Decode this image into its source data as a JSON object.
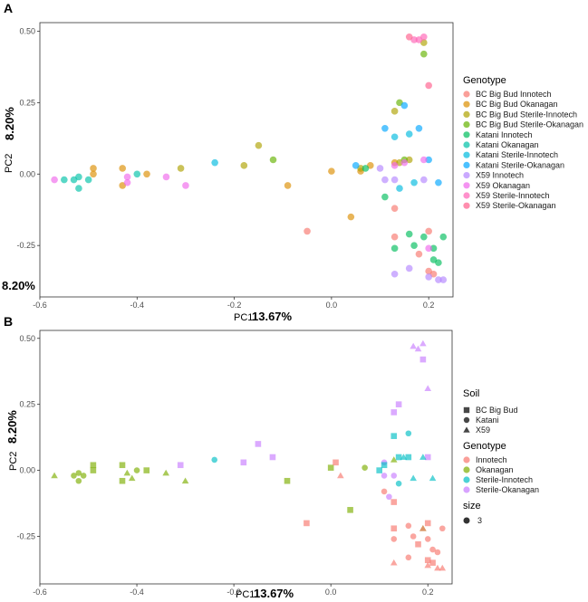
{
  "colors": {
    "BC Big Bud Innotech": "#F8766D",
    "BC Big Bud Okanagan": "#DB8E00",
    "BC Big Bud Sterile-Innotech": "#AEA200",
    "BC Big Bud Sterile-Okanagan": "#64B200",
    "Katani Innotech": "#00BD5C",
    "Katani Okanagan": "#00C1A7",
    "Katani Sterile-Innotech": "#00BADE",
    "Katani Sterile-Okanagan": "#00A6FF",
    "X59 Innotech": "#B385FF",
    "X59 Okanagan": "#EF67EB",
    "X59 Sterile-Innotech": "#FF63B6",
    "X59 Sterile-Okanagan": "#FF5E8C",
    "Innotech": "#F8766D",
    "Okanagan": "#7CAE00",
    "Sterile-Innotech": "#00BFC4",
    "Sterile-Okanagan": "#C77CFF"
  },
  "chart_data": [
    {
      "panel": "A",
      "type": "scatter",
      "xlabel": "PC1",
      "xlabel_pct": "13.67%",
      "ylabel": "PC2",
      "ylabel_pct": "8.20%",
      "extra_label": "8.20%",
      "xlim": [
        -0.6,
        0.25
      ],
      "ylim": [
        -0.43,
        0.53
      ],
      "x_ticks": [
        -0.6,
        -0.4,
        -0.2,
        0.0,
        0.2
      ],
      "x_tick_labels": [
        "-0.6",
        "-0.4",
        "-0.2",
        "0.0",
        "0.2"
      ],
      "y_ticks": [
        0.5,
        0.25,
        0.0,
        -0.25
      ],
      "y_tick_labels": [
        "0.50",
        "0.25",
        "0.00",
        "-0.25"
      ],
      "legend_title": "Genotype",
      "legend": [
        "BC Big Bud Innotech",
        "BC Big Bud Okanagan",
        "BC Big Bud Sterile-Innotech",
        "BC Big Bud Sterile-Okanagan",
        "Katani Innotech",
        "Katani Okanagan",
        "Katani Sterile-Innotech",
        "Katani Sterile-Okanagan",
        "X59 Innotech",
        "X59 Okanagan",
        "X59 Sterile-Innotech",
        "X59 Sterile-Okanagan"
      ],
      "series": [
        {
          "name": "BC Big Bud Innotech",
          "points": [
            [
              -0.05,
              -0.2
            ],
            [
              0.13,
              -0.12
            ],
            [
              0.13,
              -0.22
            ],
            [
              0.2,
              -0.2
            ],
            [
              0.2,
              -0.34
            ],
            [
              0.21,
              -0.35
            ],
            [
              0.18,
              -0.28
            ]
          ]
        },
        {
          "name": "BC Big Bud Okanagan",
          "points": [
            [
              -0.49,
              0.02
            ],
            [
              -0.49,
              0.0
            ],
            [
              -0.43,
              0.02
            ],
            [
              -0.43,
              -0.04
            ],
            [
              -0.38,
              0.0
            ],
            [
              -0.09,
              -0.04
            ],
            [
              0.0,
              0.01
            ],
            [
              0.04,
              -0.15
            ],
            [
              0.08,
              0.03
            ],
            [
              0.13,
              0.04
            ],
            [
              0.06,
              0.01
            ]
          ]
        },
        {
          "name": "BC Big Bud Sterile-Innotech",
          "points": [
            [
              -0.15,
              0.1
            ],
            [
              -0.31,
              0.02
            ],
            [
              -0.18,
              0.03
            ],
            [
              0.13,
              0.22
            ],
            [
              0.16,
              0.05
            ],
            [
              0.19,
              0.46
            ],
            [
              0.14,
              0.04
            ],
            [
              0.06,
              0.02
            ]
          ]
        },
        {
          "name": "BC Big Bud Sterile-Okanagan",
          "points": [
            [
              -0.12,
              0.05
            ],
            [
              0.14,
              0.25
            ],
            [
              0.19,
              0.42
            ],
            [
              0.15,
              0.05
            ]
          ]
        },
        {
          "name": "Katani Innotech",
          "points": [
            [
              0.13,
              -0.26
            ],
            [
              0.16,
              -0.21
            ],
            [
              0.17,
              -0.25
            ],
            [
              0.19,
              -0.22
            ],
            [
              0.21,
              -0.26
            ],
            [
              0.21,
              -0.3
            ],
            [
              0.22,
              -0.31
            ],
            [
              0.11,
              -0.08
            ],
            [
              0.23,
              -0.22
            ],
            [
              0.07,
              0.02
            ]
          ]
        },
        {
          "name": "Katani Okanagan",
          "points": [
            [
              -0.53,
              -0.02
            ],
            [
              -0.52,
              -0.01
            ],
            [
              -0.5,
              -0.02
            ],
            [
              -0.55,
              -0.02
            ],
            [
              -0.52,
              -0.05
            ],
            [
              -0.4,
              0.0
            ]
          ]
        },
        {
          "name": "Katani Sterile-Innotech",
          "points": [
            [
              -0.24,
              0.04
            ],
            [
              0.14,
              -0.05
            ],
            [
              0.16,
              0.14
            ],
            [
              0.13,
              0.13
            ],
            [
              0.17,
              -0.03
            ]
          ]
        },
        {
          "name": "Katani Sterile-Okanagan",
          "points": [
            [
              0.05,
              0.03
            ],
            [
              0.11,
              0.16
            ],
            [
              0.15,
              0.24
            ],
            [
              0.2,
              0.05
            ],
            [
              0.18,
              0.16
            ],
            [
              0.22,
              -0.03
            ]
          ]
        },
        {
          "name": "X59 Innotech",
          "points": [
            [
              0.11,
              -0.02
            ],
            [
              0.13,
              -0.02
            ],
            [
              0.19,
              -0.02
            ],
            [
              0.16,
              -0.33
            ],
            [
              0.2,
              -0.36
            ],
            [
              0.22,
              -0.37
            ],
            [
              0.23,
              -0.37
            ],
            [
              0.13,
              -0.35
            ],
            [
              0.1,
              0.02
            ]
          ]
        },
        {
          "name": "X59 Okanagan",
          "points": [
            [
              -0.57,
              -0.02
            ],
            [
              -0.42,
              -0.01
            ],
            [
              -0.42,
              -0.03
            ],
            [
              -0.34,
              -0.01
            ],
            [
              -0.3,
              -0.04
            ],
            [
              0.15,
              0.04
            ],
            [
              0.19,
              0.05
            ],
            [
              0.2,
              -0.26
            ],
            [
              0.13,
              0.03
            ]
          ]
        },
        {
          "name": "X59 Sterile-Innotech",
          "points": [
            [
              0.17,
              0.47
            ],
            [
              0.18,
              0.47
            ],
            [
              0.19,
              0.48
            ]
          ]
        },
        {
          "name": "X59 Sterile-Okanagan",
          "points": [
            [
              0.2,
              0.31
            ],
            [
              0.16,
              0.48
            ]
          ]
        }
      ]
    },
    {
      "panel": "B",
      "type": "scatter",
      "xlabel": "PC1",
      "xlabel_pct": "13.67%",
      "ylabel": "PC2",
      "ylabel_pct": "8.20%",
      "xlim": [
        -0.6,
        0.25
      ],
      "ylim": [
        -0.43,
        0.53
      ],
      "x_ticks": [
        -0.6,
        -0.4,
        -0.2,
        0.0,
        0.2
      ],
      "x_tick_labels": [
        "-0.6",
        "-0.4",
        "-0.2",
        "0.0",
        "0.2"
      ],
      "y_ticks": [
        0.5,
        0.25,
        0.0,
        -0.25
      ],
      "y_tick_labels": [
        "0.50",
        "0.25",
        "0.00",
        "-0.25"
      ],
      "legend_soil_title": "Soil",
      "legend_soil": [
        {
          "name": "BC Big Bud",
          "shape": "square"
        },
        {
          "name": "Katani",
          "shape": "circle"
        },
        {
          "name": "X59",
          "shape": "triangle"
        }
      ],
      "legend_genotype_title": "Genotype",
      "legend_genotype": [
        "Innotech",
        "Okanagan",
        "Sterile-Innotech",
        "Sterile-Okanagan"
      ],
      "legend_size_title": "size",
      "legend_size_value": "3",
      "points": [
        {
          "g": "Okanagan",
          "s": "triangle",
          "x": -0.57,
          "y": -0.02
        },
        {
          "g": "Okanagan",
          "s": "circle",
          "x": -0.53,
          "y": -0.02
        },
        {
          "g": "Okanagan",
          "s": "circle",
          "x": -0.52,
          "y": -0.01
        },
        {
          "g": "Okanagan",
          "s": "circle",
          "x": -0.51,
          "y": -0.02
        },
        {
          "g": "Okanagan",
          "s": "circle",
          "x": -0.52,
          "y": -0.04
        },
        {
          "g": "Okanagan",
          "s": "square",
          "x": -0.49,
          "y": 0.02
        },
        {
          "g": "Okanagan",
          "s": "square",
          "x": -0.49,
          "y": 0.0
        },
        {
          "g": "Okanagan",
          "s": "square",
          "x": -0.43,
          "y": 0.02
        },
        {
          "g": "Okanagan",
          "s": "square",
          "x": -0.43,
          "y": -0.04
        },
        {
          "g": "Okanagan",
          "s": "triangle",
          "x": -0.42,
          "y": -0.01
        },
        {
          "g": "Okanagan",
          "s": "triangle",
          "x": -0.41,
          "y": -0.03
        },
        {
          "g": "Okanagan",
          "s": "circle",
          "x": -0.4,
          "y": 0.0
        },
        {
          "g": "Okanagan",
          "s": "square",
          "x": -0.38,
          "y": 0.0
        },
        {
          "g": "Okanagan",
          "s": "triangle",
          "x": -0.34,
          "y": -0.01
        },
        {
          "g": "Okanagan",
          "s": "triangle",
          "x": -0.3,
          "y": -0.04
        },
        {
          "g": "Okanagan",
          "s": "square",
          "x": -0.09,
          "y": -0.04
        },
        {
          "g": "Okanagan",
          "s": "square",
          "x": 0.0,
          "y": 0.01
        },
        {
          "g": "Okanagan",
          "s": "square",
          "x": 0.04,
          "y": -0.15
        },
        {
          "g": "Okanagan",
          "s": "triangle",
          "x": 0.13,
          "y": 0.04
        },
        {
          "g": "Okanagan",
          "s": "triangle",
          "x": 0.19,
          "y": -0.22
        },
        {
          "g": "Okanagan",
          "s": "circle",
          "x": 0.07,
          "y": 0.01
        },
        {
          "g": "Sterile-Okanagan",
          "s": "square",
          "x": -0.31,
          "y": 0.02
        },
        {
          "g": "Sterile-Okanagan",
          "s": "square",
          "x": -0.18,
          "y": 0.03
        },
        {
          "g": "Sterile-Okanagan",
          "s": "square",
          "x": -0.15,
          "y": 0.1
        },
        {
          "g": "Sterile-Okanagan",
          "s": "square",
          "x": -0.12,
          "y": 0.05
        },
        {
          "g": "Sterile-Okanagan",
          "s": "square",
          "x": 0.13,
          "y": 0.22
        },
        {
          "g": "Sterile-Okanagan",
          "s": "square",
          "x": 0.14,
          "y": 0.25
        },
        {
          "g": "Sterile-Okanagan",
          "s": "triangle",
          "x": 0.17,
          "y": 0.47
        },
        {
          "g": "Sterile-Okanagan",
          "s": "triangle",
          "x": 0.18,
          "y": 0.46
        },
        {
          "g": "Sterile-Okanagan",
          "s": "triangle",
          "x": 0.19,
          "y": 0.48
        },
        {
          "g": "Sterile-Okanagan",
          "s": "square",
          "x": 0.19,
          "y": 0.42
        },
        {
          "g": "Sterile-Okanagan",
          "s": "triangle",
          "x": 0.2,
          "y": 0.31
        },
        {
          "g": "Sterile-Okanagan",
          "s": "square",
          "x": 0.2,
          "y": 0.05
        },
        {
          "g": "Sterile-Okanagan",
          "s": "circle",
          "x": 0.11,
          "y": 0.03
        },
        {
          "g": "Sterile-Okanagan",
          "s": "circle",
          "x": 0.11,
          "y": -0.02
        },
        {
          "g": "Sterile-Okanagan",
          "s": "circle",
          "x": 0.13,
          "y": -0.02
        },
        {
          "g": "Sterile-Okanagan",
          "s": "circle",
          "x": 0.12,
          "y": -0.1
        },
        {
          "g": "Sterile-Innotech",
          "s": "circle",
          "x": -0.24,
          "y": 0.04
        },
        {
          "g": "Sterile-Innotech",
          "s": "square",
          "x": 0.11,
          "y": 0.02
        },
        {
          "g": "Sterile-Innotech",
          "s": "square",
          "x": 0.13,
          "y": 0.13
        },
        {
          "g": "Sterile-Innotech",
          "s": "square",
          "x": 0.14,
          "y": 0.05
        },
        {
          "g": "Sterile-Innotech",
          "s": "triangle",
          "x": 0.15,
          "y": 0.05
        },
        {
          "g": "Sterile-Innotech",
          "s": "circle",
          "x": 0.16,
          "y": 0.14
        },
        {
          "g": "Sterile-Innotech",
          "s": "square",
          "x": 0.16,
          "y": 0.05
        },
        {
          "g": "Sterile-Innotech",
          "s": "triangle",
          "x": 0.17,
          "y": -0.03
        },
        {
          "g": "Sterile-Innotech",
          "s": "circle",
          "x": 0.14,
          "y": -0.05
        },
        {
          "g": "Sterile-Innotech",
          "s": "triangle",
          "x": 0.19,
          "y": 0.05
        },
        {
          "g": "Sterile-Innotech",
          "s": "triangle",
          "x": 0.21,
          "y": -0.03
        },
        {
          "g": "Sterile-Innotech",
          "s": "square",
          "x": 0.1,
          "y": 0.0
        },
        {
          "g": "Innotech",
          "s": "square",
          "x": -0.05,
          "y": -0.2
        },
        {
          "g": "Innotech",
          "s": "square",
          "x": 0.01,
          "y": 0.03
        },
        {
          "g": "Innotech",
          "s": "triangle",
          "x": 0.02,
          "y": -0.02
        },
        {
          "g": "Innotech",
          "s": "square",
          "x": 0.13,
          "y": -0.12
        },
        {
          "g": "Innotech",
          "s": "circle",
          "x": 0.11,
          "y": -0.08
        },
        {
          "g": "Innotech",
          "s": "square",
          "x": 0.13,
          "y": -0.22
        },
        {
          "g": "Innotech",
          "s": "circle",
          "x": 0.13,
          "y": -0.26
        },
        {
          "g": "Innotech",
          "s": "triangle",
          "x": 0.13,
          "y": -0.35
        },
        {
          "g": "Innotech",
          "s": "circle",
          "x": 0.16,
          "y": -0.21
        },
        {
          "g": "Innotech",
          "s": "circle",
          "x": 0.16,
          "y": -0.33
        },
        {
          "g": "Innotech",
          "s": "circle",
          "x": 0.17,
          "y": -0.25
        },
        {
          "g": "Innotech",
          "s": "square",
          "x": 0.18,
          "y": -0.28
        },
        {
          "g": "Innotech",
          "s": "triangle",
          "x": 0.19,
          "y": -0.22
        },
        {
          "g": "Innotech",
          "s": "square",
          "x": 0.2,
          "y": -0.2
        },
        {
          "g": "Innotech",
          "s": "circle",
          "x": 0.2,
          "y": -0.26
        },
        {
          "g": "Innotech",
          "s": "square",
          "x": 0.2,
          "y": -0.34
        },
        {
          "g": "Innotech",
          "s": "triangle",
          "x": 0.2,
          "y": -0.36
        },
        {
          "g": "Innotech",
          "s": "square",
          "x": 0.21,
          "y": -0.35
        },
        {
          "g": "Innotech",
          "s": "circle",
          "x": 0.21,
          "y": -0.3
        },
        {
          "g": "Innotech",
          "s": "circle",
          "x": 0.22,
          "y": -0.31
        },
        {
          "g": "Innotech",
          "s": "triangle",
          "x": 0.22,
          "y": -0.37
        },
        {
          "g": "Innotech",
          "s": "triangle",
          "x": 0.23,
          "y": -0.37
        },
        {
          "g": "Innotech",
          "s": "circle",
          "x": 0.23,
          "y": -0.22
        }
      ]
    }
  ]
}
